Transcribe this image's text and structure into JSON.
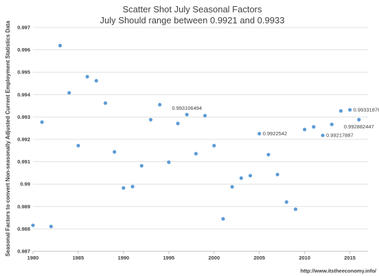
{
  "chart_data": {
    "type": "scatter",
    "title": "Scatter Shot July Seasonal Factors",
    "subtitle": "July Should range between 0.9921 and 0.9933",
    "xlabel": "",
    "ylabel": "Seasonal Factors to convert Non-seasonally Adjusted Current Employment Statistics Data",
    "xlim": [
      1980,
      2017
    ],
    "ylim": [
      0.987,
      0.997
    ],
    "x_ticks": [
      "1980",
      "1985",
      "1990",
      "1995",
      "2000",
      "2005",
      "2010",
      "2015"
    ],
    "y_ticks": [
      "0.987",
      "0.988",
      "0.989",
      "0.99",
      "0.991",
      "0.992",
      "0.993",
      "0.994",
      "0.995",
      "0.996",
      "0.997"
    ],
    "grid": "horizontal",
    "legend": "none",
    "marker_color": "#5b9bd5",
    "points": [
      {
        "x": 1980,
        "y": 0.98816
      },
      {
        "x": 1981,
        "y": 0.99277
      },
      {
        "x": 1982,
        "y": 0.98811
      },
      {
        "x": 1983,
        "y": 0.99619
      },
      {
        "x": 1984,
        "y": 0.99408
      },
      {
        "x": 1985,
        "y": 0.99172
      },
      {
        "x": 1986,
        "y": 0.9948
      },
      {
        "x": 1987,
        "y": 0.99462
      },
      {
        "x": 1988,
        "y": 0.99362
      },
      {
        "x": 1989,
        "y": 0.99144
      },
      {
        "x": 1990,
        "y": 0.98983
      },
      {
        "x": 1991,
        "y": 0.98989
      },
      {
        "x": 1992,
        "y": 0.99082
      },
      {
        "x": 1993,
        "y": 0.99288
      },
      {
        "x": 1994,
        "y": 0.99355
      },
      {
        "x": 1995,
        "y": 0.99098
      },
      {
        "x": 1996,
        "y": 0.99271
      },
      {
        "x": 1997,
        "y": 0.993106494
      },
      {
        "x": 1998,
        "y": 0.99136
      },
      {
        "x": 1999,
        "y": 0.99306
      },
      {
        "x": 2000,
        "y": 0.99172
      },
      {
        "x": 2001,
        "y": 0.98845
      },
      {
        "x": 2002,
        "y": 0.98988
      },
      {
        "x": 2003,
        "y": 0.99027
      },
      {
        "x": 2004,
        "y": 0.99038
      },
      {
        "x": 2005,
        "y": 0.9922542
      },
      {
        "x": 2006,
        "y": 0.99132
      },
      {
        "x": 2007,
        "y": 0.99043
      },
      {
        "x": 2008,
        "y": 0.9892
      },
      {
        "x": 2009,
        "y": 0.98888
      },
      {
        "x": 2010,
        "y": 0.99244
      },
      {
        "x": 2011,
        "y": 0.99256
      },
      {
        "x": 2012,
        "y": 0.99217887
      },
      {
        "x": 2013,
        "y": 0.99267
      },
      {
        "x": 2014,
        "y": 0.99327
      },
      {
        "x": 2015,
        "y": 0.993318762
      },
      {
        "x": 2016,
        "y": 0.992882447
      }
    ],
    "data_labels": [
      {
        "x": 1997,
        "y": 0.993106494,
        "text": "0.993106494",
        "pos": "above"
      },
      {
        "x": 2005,
        "y": 0.9922542,
        "text": "0.9922542",
        "pos": "right"
      },
      {
        "x": 2012,
        "y": 0.99217887,
        "text": "0.99217887",
        "pos": "right"
      },
      {
        "x": 2015,
        "y": 0.993318762,
        "text": "0.993318762",
        "pos": "right"
      },
      {
        "x": 2016,
        "y": 0.992882447,
        "text": "0.992882447",
        "pos": "below"
      }
    ],
    "source_url": "http://www.itstheeconomy.info/"
  }
}
